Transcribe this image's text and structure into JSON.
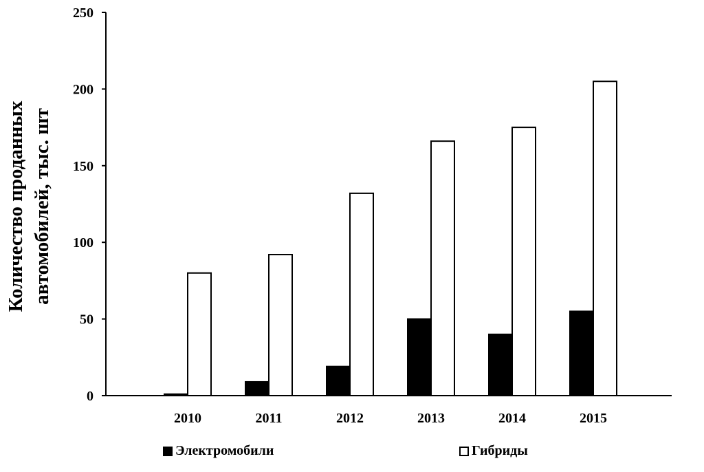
{
  "chart_data": {
    "type": "bar",
    "categories": [
      "2010",
      "2011",
      "2012",
      "2013",
      "2014",
      "2015"
    ],
    "series": [
      {
        "name": "Электромобили",
        "values": [
          1,
          9,
          19,
          50,
          40,
          55
        ],
        "color": "#000000"
      },
      {
        "name": "Гибриды",
        "values": [
          80,
          92,
          132,
          166,
          175,
          205
        ],
        "color": "#ffffff"
      }
    ],
    "ylabel_lines": [
      "Количество проданных",
      "автомобилей, тыс. шт"
    ],
    "ylim": [
      0,
      250
    ],
    "yticks": [
      "0",
      "50",
      "100",
      "150",
      "200",
      "250"
    ],
    "grid": false,
    "legend": "bottom"
  }
}
